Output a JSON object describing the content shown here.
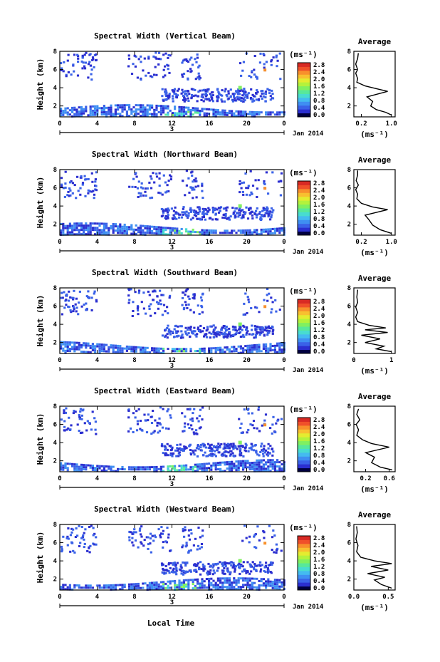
{
  "colors": {
    "scale": [
      "#000040",
      "#2b2fd0",
      "#3a62e8",
      "#3f8ff2",
      "#44bbf0",
      "#48dcd0",
      "#58e89a",
      "#80f060",
      "#b4f23c",
      "#e4ec30",
      "#f8c030",
      "#f8902c",
      "#f0502a",
      "#d82a24"
    ],
    "axis": "#000000"
  },
  "colorbar_ticks": [
    "0.0",
    "0.4",
    "0.8",
    "1.2",
    "1.6",
    "2.0",
    "2.4",
    "2.8"
  ],
  "chart_data": [
    {
      "type": "heatmap",
      "title": "Spectral Width (Vertical Beam)",
      "ylabel": "Height (km)",
      "yticks": [
        "2",
        "4",
        "6",
        "8"
      ],
      "xticks": [
        "0",
        "4",
        "8",
        "12",
        "16",
        "20",
        "0"
      ],
      "date_tick": "3",
      "date_label": "Jan 2014",
      "colorbar_unit": "(ms⁻¹)",
      "xlim": [
        0,
        24
      ],
      "ylim": [
        0.8,
        8
      ],
      "clim": [
        0,
        3
      ],
      "avg": {
        "title": "Average",
        "xlabel": "(ms⁻¹)",
        "xticks": [
          "0.2",
          "1.0"
        ],
        "yticks": [
          "2",
          "4",
          "6",
          "8"
        ],
        "xlim": [
          0,
          1.1
        ],
        "profile": [
          [
            1.0,
            1.0
          ],
          [
            0.85,
            1.3
          ],
          [
            0.6,
            1.6
          ],
          [
            0.45,
            2.0
          ],
          [
            0.5,
            2.5
          ],
          [
            0.35,
            3.0
          ],
          [
            0.9,
            3.6
          ],
          [
            0.6,
            3.9
          ],
          [
            0.3,
            4.2
          ],
          [
            0.08,
            4.6
          ],
          [
            0.1,
            5.0
          ],
          [
            0.05,
            5.6
          ],
          [
            0.1,
            6.0
          ],
          [
            0.05,
            6.6
          ],
          [
            0.1,
            7.2
          ],
          [
            0.12,
            7.8
          ]
        ]
      }
    },
    {
      "type": "heatmap",
      "title": "Spectral Width (Northward Beam)",
      "ylabel": "Height (km)",
      "yticks": [
        "2",
        "4",
        "6",
        "8"
      ],
      "xticks": [
        "0",
        "4",
        "8",
        "12",
        "16",
        "20",
        "0"
      ],
      "date_tick": "3",
      "date_label": "Jan 2014",
      "colorbar_unit": "(ms⁻¹)",
      "xlim": [
        0,
        24
      ],
      "ylim": [
        0.8,
        8
      ],
      "clim": [
        0,
        3
      ],
      "avg": {
        "title": "Average",
        "xlabel": "(ms⁻¹)",
        "xticks": [
          "0.2",
          "1.0"
        ],
        "yticks": [
          "2",
          "4",
          "6",
          "8"
        ],
        "xlim": [
          0,
          1.1
        ],
        "profile": [
          [
            1.0,
            1.0
          ],
          [
            0.7,
            1.4
          ],
          [
            0.5,
            1.9
          ],
          [
            0.4,
            2.5
          ],
          [
            0.3,
            3.0
          ],
          [
            0.9,
            3.6
          ],
          [
            0.5,
            3.9
          ],
          [
            0.2,
            4.3
          ],
          [
            0.08,
            4.8
          ],
          [
            0.1,
            5.3
          ],
          [
            0.05,
            5.8
          ],
          [
            0.12,
            6.3
          ],
          [
            0.06,
            6.8
          ],
          [
            0.1,
            7.4
          ],
          [
            0.1,
            7.9
          ]
        ]
      }
    },
    {
      "type": "heatmap",
      "title": "Spectral Width (Southward Beam)",
      "ylabel": "Height (km)",
      "yticks": [
        "2",
        "4",
        "6",
        "8"
      ],
      "xticks": [
        "0",
        "4",
        "8",
        "12",
        "16",
        "20",
        "0"
      ],
      "date_tick": "3",
      "date_label": "Jan 2014",
      "colorbar_unit": "(ms⁻¹)",
      "xlim": [
        0,
        24
      ],
      "ylim": [
        0.8,
        8
      ],
      "clim": [
        0,
        3
      ],
      "avg": {
        "title": "Average",
        "xlabel": "(ms⁻¹)",
        "xticks": [
          "0",
          "1"
        ],
        "yticks": [
          "2",
          "4",
          "6",
          "8"
        ],
        "xlim": [
          0,
          1.1
        ],
        "profile": [
          [
            1.0,
            1.0
          ],
          [
            0.6,
            1.3
          ],
          [
            0.8,
            1.6
          ],
          [
            0.3,
            2.0
          ],
          [
            0.7,
            2.4
          ],
          [
            0.2,
            2.8
          ],
          [
            0.9,
            3.1
          ],
          [
            0.3,
            3.4
          ],
          [
            0.85,
            3.6
          ],
          [
            0.4,
            3.9
          ],
          [
            0.1,
            4.3
          ],
          [
            0.05,
            4.8
          ],
          [
            0.1,
            5.3
          ],
          [
            0.05,
            5.9
          ],
          [
            0.1,
            6.4
          ],
          [
            0.08,
            7.0
          ],
          [
            0.1,
            7.8
          ]
        ]
      }
    },
    {
      "type": "heatmap",
      "title": "Spectral Width (Eastward Beam)",
      "ylabel": "Height (km)",
      "yticks": [
        "2",
        "4",
        "6",
        "8"
      ],
      "xticks": [
        "0",
        "4",
        "8",
        "12",
        "16",
        "20",
        "0"
      ],
      "date_tick": "3",
      "date_label": "Jan 2014",
      "colorbar_unit": "(ms⁻¹)",
      "xlim": [
        0,
        24
      ],
      "ylim": [
        0.8,
        8
      ],
      "clim": [
        0,
        3
      ],
      "avg": {
        "title": "Average",
        "xlabel": "(ms⁻¹)",
        "xticks": [
          "0.2",
          "0.6"
        ],
        "yticks": [
          "2",
          "4",
          "6",
          "8"
        ],
        "xlim": [
          0,
          0.7
        ],
        "profile": [
          [
            0.65,
            1.0
          ],
          [
            0.45,
            1.3
          ],
          [
            0.3,
            1.8
          ],
          [
            0.35,
            2.4
          ],
          [
            0.2,
            2.9
          ],
          [
            0.6,
            3.5
          ],
          [
            0.3,
            3.9
          ],
          [
            0.15,
            4.3
          ],
          [
            0.05,
            4.8
          ],
          [
            0.08,
            5.4
          ],
          [
            0.04,
            6.0
          ],
          [
            0.1,
            6.5
          ],
          [
            0.05,
            7.1
          ],
          [
            0.08,
            7.7
          ]
        ]
      }
    },
    {
      "type": "heatmap",
      "title": "Spectral Width (Westward Beam)",
      "ylabel": "Height (km)",
      "yticks": [
        "2",
        "4",
        "6",
        "8"
      ],
      "xticks": [
        "0",
        "4",
        "8",
        "12",
        "16",
        "20",
        "0"
      ],
      "date_tick": "3",
      "date_label": "Jan 2014",
      "colorbar_unit": "(ms⁻¹)",
      "xlim": [
        0,
        24
      ],
      "ylim": [
        0.8,
        8
      ],
      "clim": [
        0,
        3
      ],
      "avg": {
        "title": "Average",
        "xlabel": "(ms⁻¹)",
        "xticks": [
          "0.0",
          "0.5"
        ],
        "yticks": [
          "2",
          "4",
          "6",
          "8"
        ],
        "xlim": [
          0,
          0.6
        ],
        "profile": [
          [
            0.55,
            1.0
          ],
          [
            0.4,
            1.4
          ],
          [
            0.3,
            1.9
          ],
          [
            0.45,
            2.2
          ],
          [
            0.2,
            2.6
          ],
          [
            0.5,
            3.0
          ],
          [
            0.25,
            3.4
          ],
          [
            0.55,
            3.7
          ],
          [
            0.3,
            4.0
          ],
          [
            0.1,
            4.4
          ],
          [
            0.04,
            5.0
          ],
          [
            0.06,
            5.7
          ],
          [
            0.03,
            6.4
          ],
          [
            0.05,
            7.1
          ],
          [
            0.04,
            7.8
          ]
        ]
      }
    }
  ],
  "shared_xlabel": "Local Time"
}
